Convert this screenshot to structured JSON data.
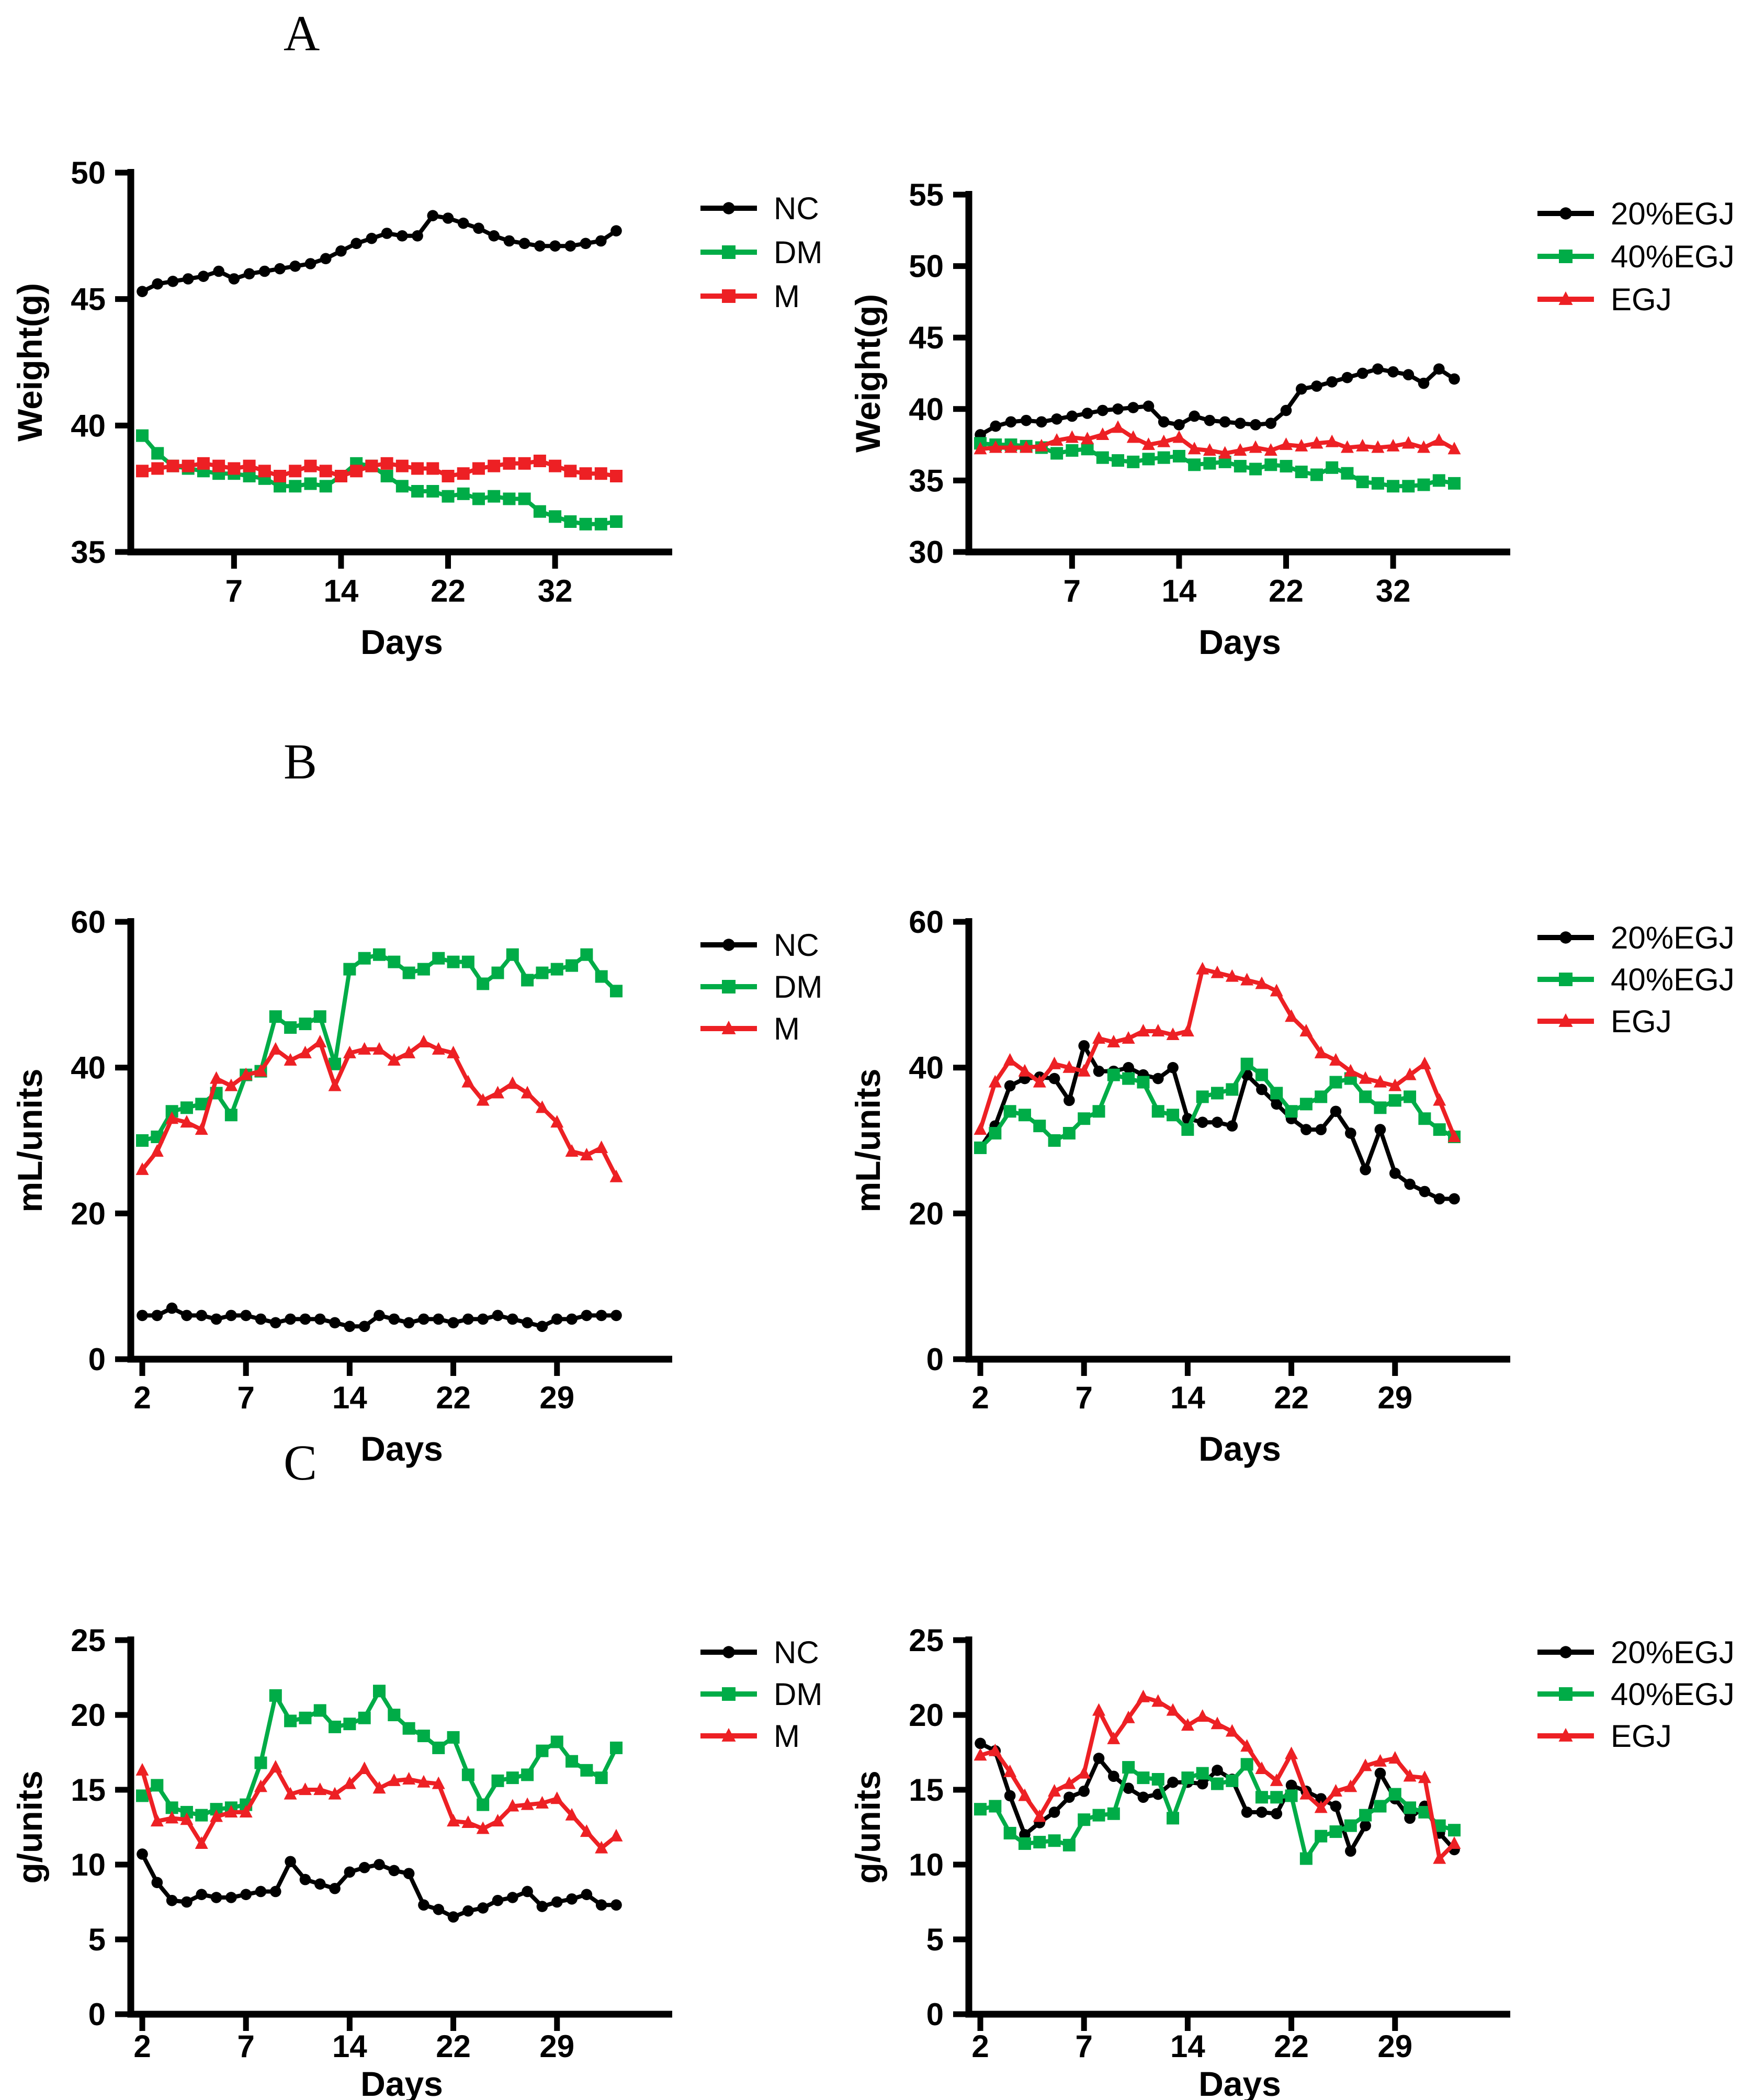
{
  "figure": {
    "panels": [
      {
        "letter": "A"
      },
      {
        "letter": "B"
      },
      {
        "letter": "C"
      }
    ]
  },
  "colors": {
    "black": "#000000",
    "green": "#00AC47",
    "red": "#ED2024"
  },
  "chart_data": [
    {
      "id": "weight-control",
      "panel": "A",
      "side": "left",
      "type": "line",
      "title": "",
      "xlabel": "Days",
      "ylabel": "Weight(g)",
      "ylim": [
        35,
        50
      ],
      "yticks": [
        35,
        40,
        45,
        50
      ],
      "xtick_labels": [
        "7",
        "14",
        "22",
        "32"
      ],
      "xtick_indices": [
        7,
        14,
        21,
        28
      ],
      "n_points": 32,
      "grid": false,
      "legend_position": "right",
      "series": [
        {
          "name": "NC",
          "color": "black",
          "marker": "circle",
          "values": [
            45.3,
            45.6,
            45.7,
            45.8,
            45.9,
            46.1,
            45.8,
            46.0,
            46.1,
            46.2,
            46.3,
            46.4,
            46.6,
            46.9,
            47.2,
            47.4,
            47.6,
            47.5,
            47.5,
            48.3,
            48.2,
            48.0,
            47.8,
            47.5,
            47.3,
            47.2,
            47.1,
            47.1,
            47.1,
            47.2,
            47.3,
            47.7
          ]
        },
        {
          "name": "DM",
          "color": "green",
          "marker": "square",
          "values": [
            39.6,
            38.9,
            38.4,
            38.3,
            38.2,
            38.1,
            38.1,
            38.0,
            37.9,
            37.6,
            37.6,
            37.7,
            37.6,
            38.0,
            38.5,
            38.4,
            38.0,
            37.6,
            37.4,
            37.4,
            37.2,
            37.3,
            37.1,
            37.2,
            37.1,
            37.1,
            36.6,
            36.4,
            36.2,
            36.1,
            36.1,
            36.2
          ]
        },
        {
          "name": "M",
          "color": "red",
          "marker": "square",
          "values": [
            38.2,
            38.3,
            38.4,
            38.4,
            38.5,
            38.4,
            38.3,
            38.4,
            38.2,
            38.0,
            38.2,
            38.4,
            38.2,
            38.0,
            38.2,
            38.4,
            38.5,
            38.4,
            38.3,
            38.3,
            38.0,
            38.1,
            38.3,
            38.4,
            38.5,
            38.5,
            38.6,
            38.4,
            38.2,
            38.1,
            38.1,
            38.0
          ]
        }
      ]
    },
    {
      "id": "weight-egj",
      "panel": "A",
      "side": "right",
      "type": "line",
      "title": "",
      "xlabel": "Days",
      "ylabel": "Weight(g)",
      "ylim": [
        30,
        55
      ],
      "yticks": [
        30,
        35,
        40,
        45,
        50,
        55
      ],
      "xtick_labels": [
        "7",
        "14",
        "22",
        "32"
      ],
      "xtick_indices": [
        7,
        14,
        21,
        28
      ],
      "n_points": 32,
      "grid": false,
      "legend_position": "right",
      "series": [
        {
          "name": "20%EGJ",
          "color": "black",
          "marker": "circle",
          "values": [
            38.2,
            38.8,
            39.1,
            39.2,
            39.1,
            39.3,
            39.5,
            39.7,
            39.9,
            40.0,
            40.1,
            40.2,
            39.1,
            38.9,
            39.5,
            39.2,
            39.1,
            39.0,
            38.9,
            39.0,
            39.9,
            41.4,
            41.6,
            41.9,
            42.2,
            42.5,
            42.8,
            42.6,
            42.4,
            41.8,
            42.8,
            42.1
          ]
        },
        {
          "name": "40%EGJ",
          "color": "green",
          "marker": "square",
          "values": [
            37.6,
            37.5,
            37.5,
            37.4,
            37.3,
            36.9,
            37.1,
            37.2,
            36.6,
            36.4,
            36.3,
            36.5,
            36.6,
            36.7,
            36.1,
            36.2,
            36.3,
            36.0,
            35.8,
            36.1,
            36.0,
            35.6,
            35.4,
            35.9,
            35.5,
            34.9,
            34.8,
            34.6,
            34.6,
            34.7,
            35.0,
            34.8
          ]
        },
        {
          "name": "EGJ",
          "color": "red",
          "marker": "triangle",
          "values": [
            37.2,
            37.3,
            37.3,
            37.3,
            37.4,
            37.8,
            38.0,
            37.9,
            38.2,
            38.7,
            38.0,
            37.5,
            37.7,
            38.0,
            37.2,
            37.1,
            36.9,
            37.1,
            37.3,
            37.1,
            37.5,
            37.4,
            37.6,
            37.7,
            37.3,
            37.4,
            37.3,
            37.4,
            37.6,
            37.3,
            37.8,
            37.2
          ]
        }
      ]
    },
    {
      "id": "water-control",
      "panel": "B",
      "side": "left",
      "type": "line",
      "title": "",
      "xlabel": "Days",
      "ylabel": "mL/units",
      "ylim": [
        0,
        60
      ],
      "yticks": [
        0,
        20,
        40,
        60
      ],
      "xtick_labels": [
        "2",
        "7",
        "14",
        "22",
        "29"
      ],
      "xtick_indices": [
        1,
        8,
        15,
        22,
        29
      ],
      "n_points": 33,
      "grid": false,
      "legend_position": "right",
      "series": [
        {
          "name": "NC",
          "color": "black",
          "marker": "circle",
          "values": [
            6,
            6,
            7,
            6,
            6,
            5.5,
            6,
            6,
            5.5,
            5,
            5.5,
            5.5,
            5.5,
            5,
            4.5,
            4.5,
            6,
            5.5,
            5,
            5.5,
            5.5,
            5,
            5.5,
            5.5,
            6,
            5.5,
            5,
            4.5,
            5.5,
            5.5,
            6,
            6,
            6
          ]
        },
        {
          "name": "DM",
          "color": "green",
          "marker": "square",
          "values": [
            30,
            30.5,
            34,
            34.5,
            35,
            36.5,
            33.5,
            39,
            39.5,
            47,
            45.5,
            46,
            47,
            40.5,
            53.5,
            55,
            55.5,
            54.5,
            53,
            53.5,
            55,
            54.5,
            54.5,
            51.5,
            53,
            55.5,
            52,
            53,
            53.5,
            54,
            55.5,
            52.5,
            50.5
          ]
        },
        {
          "name": "M",
          "color": "red",
          "marker": "triangle",
          "values": [
            26,
            28.5,
            33,
            32.5,
            31.5,
            38.5,
            37.5,
            39,
            39.5,
            42.5,
            41,
            42,
            43.5,
            37.5,
            42,
            42.5,
            42.5,
            41,
            42,
            43.5,
            42.5,
            42,
            38,
            35.5,
            36.5,
            37.8,
            36.5,
            34.5,
            32.5,
            28.5,
            28,
            29,
            25
          ]
        }
      ]
    },
    {
      "id": "water-egj",
      "panel": "B",
      "side": "right",
      "type": "line",
      "title": "",
      "xlabel": "Days",
      "ylabel": "mL/units",
      "ylim": [
        0,
        60
      ],
      "yticks": [
        0,
        20,
        40,
        60
      ],
      "xtick_labels": [
        "2",
        "7",
        "14",
        "22",
        "29"
      ],
      "xtick_indices": [
        1,
        8,
        15,
        22,
        29
      ],
      "n_points": 33,
      "grid": false,
      "legend_position": "right",
      "series": [
        {
          "name": "20%EGJ",
          "color": "black",
          "marker": "circle",
          "values": [
            29,
            32,
            37.5,
            38.5,
            38.7,
            38.5,
            35.5,
            43,
            39.5,
            39.5,
            40,
            39,
            38.5,
            40,
            33,
            32.5,
            32.5,
            32,
            39,
            37,
            35,
            33,
            31.5,
            31.5,
            34,
            31,
            26,
            31.5,
            25.5,
            24,
            23,
            22,
            22
          ]
        },
        {
          "name": "40%EGJ",
          "color": "green",
          "marker": "square",
          "values": [
            29,
            31,
            34,
            33.5,
            32,
            30,
            31,
            33,
            34,
            39,
            38.5,
            38,
            34,
            33.5,
            31.5,
            36,
            36.5,
            37,
            40.5,
            39,
            36.5,
            34,
            35,
            36,
            38,
            38.5,
            36,
            34.5,
            35.5,
            36,
            33,
            31.5,
            30.5
          ]
        },
        {
          "name": "EGJ",
          "color": "red",
          "marker": "triangle",
          "values": [
            31.5,
            38,
            41,
            39.5,
            38,
            40.5,
            40,
            39.5,
            44,
            43.5,
            44,
            45,
            45,
            44.5,
            45,
            53.5,
            53,
            52.5,
            52,
            51.5,
            50.5,
            47,
            45,
            42,
            41,
            39.5,
            38.5,
            38,
            37.5,
            39,
            40.5,
            35.5,
            30.5
          ]
        }
      ]
    },
    {
      "id": "food-control",
      "panel": "C",
      "side": "left",
      "type": "line",
      "title": "",
      "xlabel": "Days",
      "ylabel": "g/units",
      "ylim": [
        0,
        25
      ],
      "yticks": [
        0,
        5,
        10,
        15,
        20,
        25
      ],
      "xtick_labels": [
        "2",
        "7",
        "14",
        "22",
        "29"
      ],
      "xtick_indices": [
        1,
        8,
        15,
        22,
        29
      ],
      "n_points": 33,
      "grid": false,
      "legend_position": "right",
      "series": [
        {
          "name": "NC",
          "color": "black",
          "marker": "circle",
          "values": [
            10.7,
            8.8,
            7.6,
            7.5,
            8.0,
            7.8,
            7.8,
            8.0,
            8.2,
            8.2,
            10.2,
            9.0,
            8.7,
            8.4,
            9.5,
            9.8,
            10.0,
            9.6,
            9.4,
            7.3,
            7.0,
            6.5,
            6.9,
            7.1,
            7.6,
            7.8,
            8.2,
            7.2,
            7.5,
            7.7,
            8.0,
            7.3,
            7.3
          ]
        },
        {
          "name": "DM",
          "color": "green",
          "marker": "square",
          "values": [
            14.6,
            15.3,
            13.8,
            13.5,
            13.3,
            13.7,
            13.8,
            14.0,
            16.8,
            21.3,
            19.6,
            19.8,
            20.3,
            19.2,
            19.4,
            19.8,
            21.6,
            20.0,
            19.1,
            18.6,
            17.8,
            18.5,
            16.0,
            14.0,
            15.6,
            15.8,
            16.0,
            17.6,
            18.2,
            16.9,
            16.3,
            15.8,
            17.8
          ]
        },
        {
          "name": "M",
          "color": "red",
          "marker": "triangle",
          "values": [
            16.3,
            12.9,
            13.1,
            13.0,
            11.4,
            13.2,
            13.5,
            13.5,
            15.2,
            16.5,
            14.7,
            15.0,
            15.0,
            14.7,
            15.4,
            16.4,
            15.1,
            15.6,
            15.7,
            15.5,
            15.4,
            12.9,
            12.8,
            12.4,
            12.9,
            13.9,
            14.0,
            14.1,
            14.4,
            13.3,
            12.2,
            11.1,
            11.9
          ]
        }
      ]
    },
    {
      "id": "food-egj",
      "panel": "C",
      "side": "right",
      "type": "line",
      "title": "",
      "xlabel": "Days",
      "ylabel": "g/units",
      "ylim": [
        0,
        25
      ],
      "yticks": [
        0,
        5,
        10,
        15,
        20,
        25
      ],
      "xtick_labels": [
        "2",
        "7",
        "14",
        "22",
        "29"
      ],
      "xtick_indices": [
        1,
        8,
        15,
        22,
        29
      ],
      "n_points": 33,
      "grid": false,
      "legend_position": "right",
      "series": [
        {
          "name": "20%EGJ",
          "color": "black",
          "marker": "circle",
          "values": [
            18.1,
            17.6,
            14.6,
            12.0,
            12.8,
            13.5,
            14.5,
            14.9,
            17.1,
            15.9,
            15.1,
            14.5,
            14.7,
            15.5,
            15.5,
            15.4,
            16.3,
            15.7,
            13.5,
            13.5,
            13.4,
            15.3,
            14.9,
            14.4,
            13.9,
            10.9,
            12.6,
            16.1,
            14.4,
            13.1,
            13.9,
            12.1,
            11.0
          ]
        },
        {
          "name": "40%EGJ",
          "color": "green",
          "marker": "square",
          "values": [
            13.7,
            13.9,
            12.1,
            11.4,
            11.5,
            11.6,
            11.3,
            13.0,
            13.3,
            13.4,
            16.5,
            15.8,
            15.7,
            13.1,
            15.8,
            16.1,
            15.4,
            15.6,
            16.7,
            14.5,
            14.5,
            14.6,
            10.4,
            11.9,
            12.2,
            12.6,
            13.3,
            13.9,
            14.7,
            13.8,
            13.5,
            12.6,
            12.3
          ]
        },
        {
          "name": "EGJ",
          "color": "red",
          "marker": "triangle",
          "values": [
            17.3,
            17.6,
            16.2,
            14.6,
            13.2,
            14.9,
            15.4,
            16.1,
            20.3,
            18.4,
            19.8,
            21.2,
            20.9,
            20.3,
            19.3,
            19.9,
            19.4,
            18.9,
            17.9,
            16.4,
            15.6,
            17.4,
            14.7,
            13.8,
            14.9,
            15.2,
            16.6,
            16.9,
            17.1,
            15.9,
            15.8,
            10.4,
            11.4
          ]
        }
      ]
    }
  ]
}
